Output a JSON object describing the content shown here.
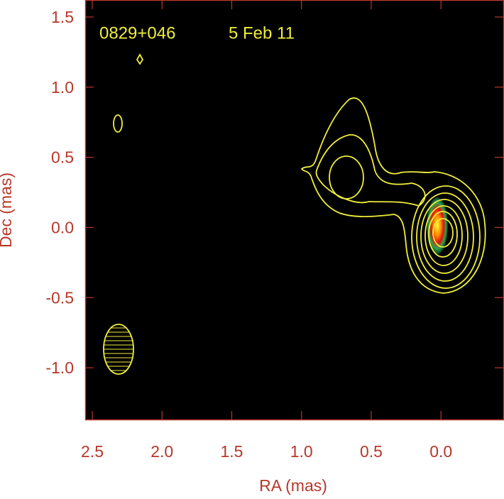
{
  "chart_data": {
    "type": "contour",
    "title": "0829+046",
    "subtitle": "5 Feb 11",
    "x_label": "RA (mas)",
    "y_label": "Dec (mas)",
    "xlim": [
      2.551,
      -0.447
    ],
    "ylim": [
      -1.369,
      1.616
    ],
    "xticks": [
      2.5,
      {
        "value": 2,
        "label": "2.0"
      },
      1.5,
      {
        "value": 1,
        "label": "1.0"
      },
      0.5,
      {
        "value": 0,
        "label": "0.0"
      }
    ],
    "yticks": [
      1.5,
      {
        "value": 1,
        "label": "1.0"
      },
      0.5,
      {
        "value": 0,
        "label": "0.0"
      },
      -0.5,
      {
        "value": -1,
        "label": "-1.0"
      }
    ],
    "axis_color": "#b7372a",
    "contour_color": "#f0ee3c"
  }
}
